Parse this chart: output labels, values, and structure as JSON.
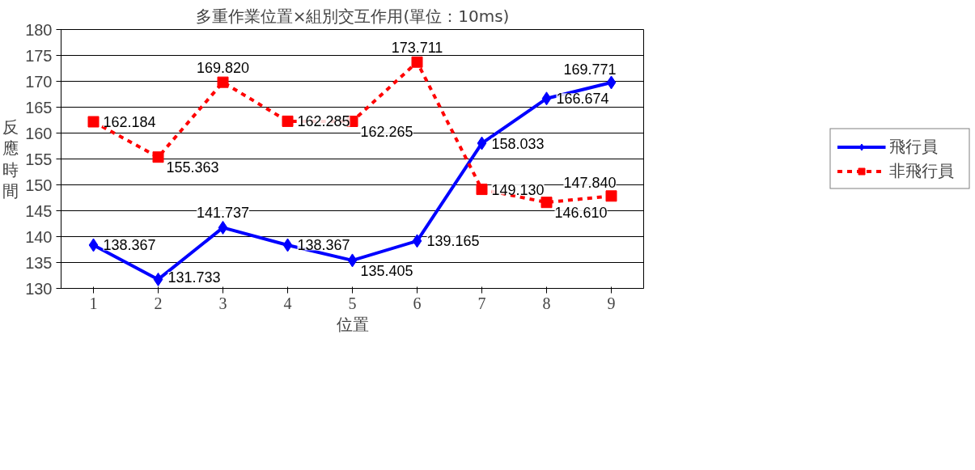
{
  "chart_data": {
    "type": "line",
    "title": "多重作業位置×組別交互作用(單位：10ms)",
    "xlabel": "位置",
    "ylabel": "反應時間",
    "categories": [
      "1",
      "2",
      "3",
      "4",
      "5",
      "6",
      "7",
      "8",
      "9"
    ],
    "series": [
      {
        "name": "飛行員",
        "color": "#0000ff",
        "marker": "diamond",
        "line_style": "solid",
        "values": [
          138.367,
          131.733,
          141.737,
          138.367,
          135.405,
          139.165,
          158.033,
          166.674,
          169.771
        ],
        "value_labels": [
          "138.367",
          "131.733",
          "141.737",
          "138.367",
          "135.405",
          "139.165",
          "158.033",
          "166.674",
          "169.771"
        ]
      },
      {
        "name": "非飛行員",
        "color": "#ff0000",
        "marker": "square",
        "line_style": "dashed",
        "values": [
          162.184,
          155.363,
          169.82,
          162.285,
          162.265,
          173.711,
          149.13,
          146.61,
          147.84
        ],
        "value_labels": [
          "162.184",
          "155.363",
          "169.820",
          "162.285",
          "162.265",
          "173.711",
          "149.130",
          "146.610",
          "147.840"
        ]
      }
    ],
    "ylim": [
      130,
      180
    ],
    "yticks": [
      130,
      135,
      140,
      145,
      150,
      155,
      160,
      165,
      170,
      175,
      180
    ],
    "grid": "y",
    "legend": "right"
  }
}
